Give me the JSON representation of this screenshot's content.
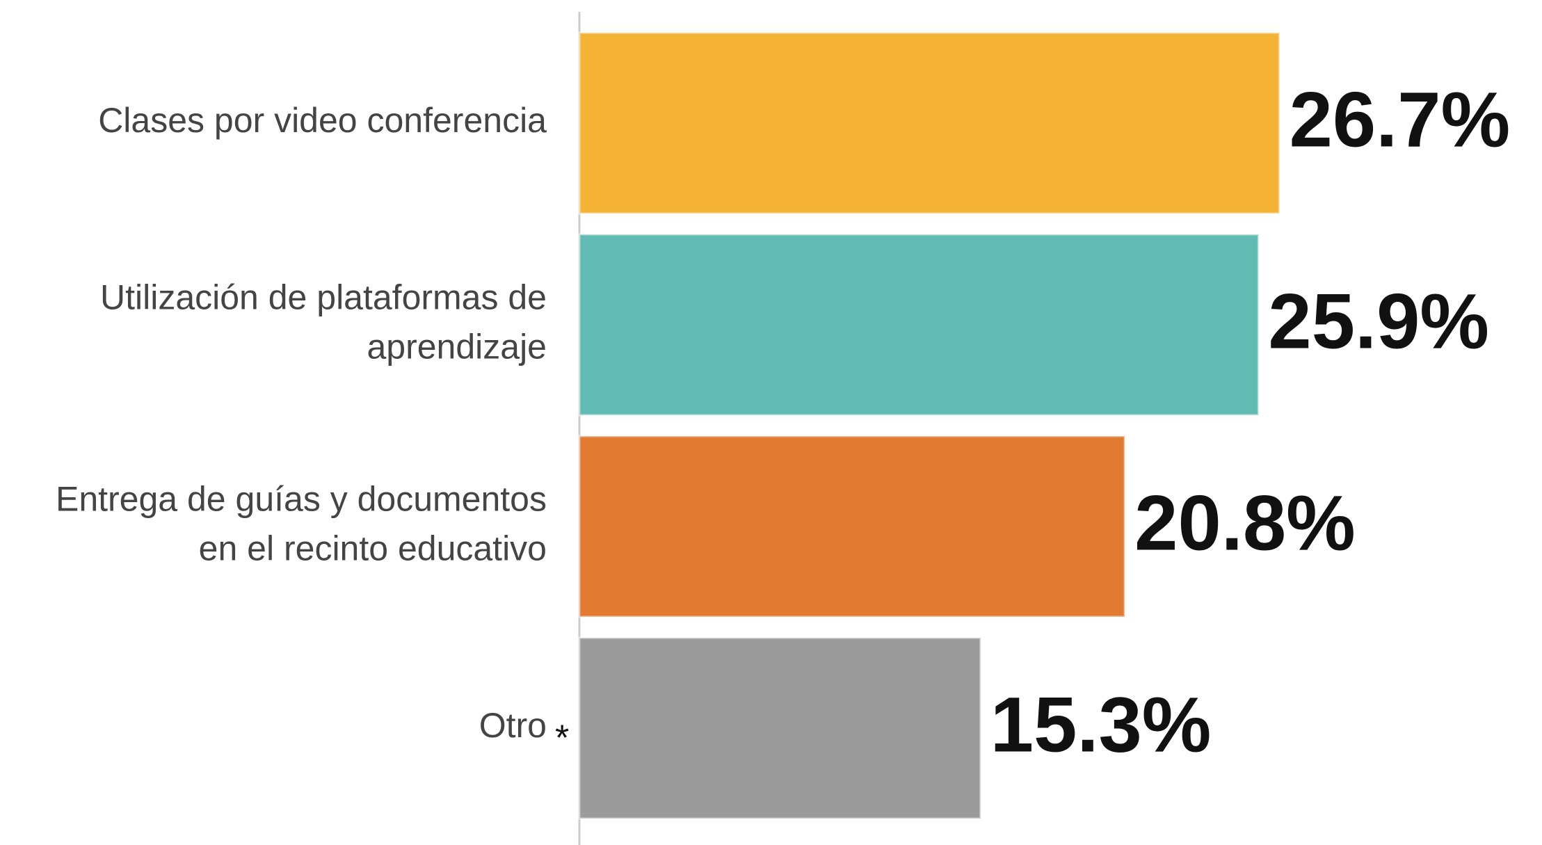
{
  "chart_data": {
    "type": "barh",
    "categories": [
      [
        "Clases por video conferencia"
      ],
      [
        "Utilización de plataformas de",
        "aprendizaje"
      ],
      [
        "Entrega de guías y documentos",
        "en el recinto educativo"
      ],
      [
        "Otro"
      ]
    ],
    "values": [
      26.7,
      25.9,
      20.8,
      15.3
    ],
    "value_labels": [
      "26.7%",
      "25.9%",
      "20.8%",
      "15.3%"
    ],
    "colors": [
      "#f5b335",
      "#62bbb3",
      "#e37a32",
      "#9b9b9b"
    ],
    "annotation": "*"
  }
}
